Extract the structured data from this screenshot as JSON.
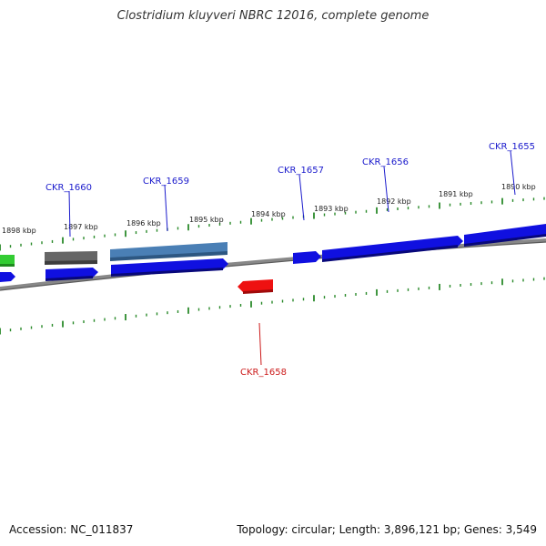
{
  "title": "Clostridium kluyveri NBRC 12016, complete genome",
  "accession": "Accession: NC_011837",
  "summary": "Topology: circular; Length: 3,896,121 bp; Genes: 3,549",
  "kbp_labels": [
    "1898 kbp",
    "1897 kbp",
    "1896 kbp",
    "1895 kbp",
    "1894 kbp",
    "1893 kbp",
    "1892 kbp",
    "1891 kbp",
    "1890 kbp"
  ],
  "gene_labels": [
    {
      "name": "CKR_1660",
      "color": "#1a1acc"
    },
    {
      "name": "CKR_1659",
      "color": "#1a1acc"
    },
    {
      "name": "CKR_1657",
      "color": "#1a1acc"
    },
    {
      "name": "CKR_1656",
      "color": "#1a1acc"
    },
    {
      "name": "CKR_1655",
      "color": "#1a1acc"
    },
    {
      "name": "CKR_1658",
      "color": "#cc1a1a"
    }
  ],
  "colors": {
    "tick": "#2a8a2a",
    "backbone": "#808080",
    "gene_blue": "#1010e0",
    "gene_red": "#ee1111",
    "gene_gray": "#666666",
    "gene_steel": "#4a7fb5",
    "gene_green": "#33cc33"
  }
}
